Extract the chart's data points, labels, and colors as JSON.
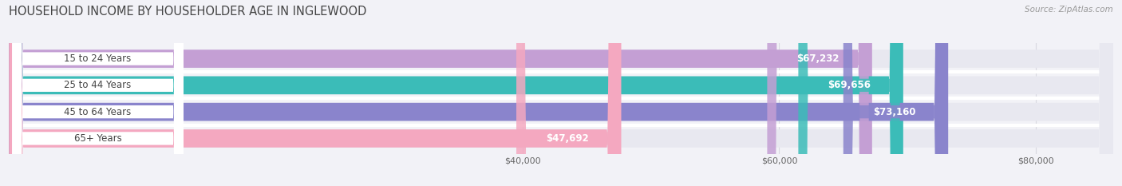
{
  "title": "HOUSEHOLD INCOME BY HOUSEHOLDER AGE IN INGLEWOOD",
  "source": "Source: ZipAtlas.com",
  "categories": [
    "15 to 24 Years",
    "25 to 44 Years",
    "45 to 64 Years",
    "65+ Years"
  ],
  "values": [
    67232,
    69656,
    73160,
    47692
  ],
  "bar_colors": [
    "#c49fd4",
    "#3bbcb8",
    "#8a84cc",
    "#f4a8c0"
  ],
  "bar_label_colors": [
    "#b87fc0",
    "#1fa8a4",
    "#7070b8",
    "#e888a8"
  ],
  "bar_labels": [
    "$67,232",
    "$69,656",
    "$73,160",
    "$47,692"
  ],
  "value_label_inside": [
    true,
    true,
    true,
    false
  ],
  "xlim_min": 0,
  "xlim_max": 86000,
  "xticks": [
    40000,
    60000,
    80000
  ],
  "xtick_labels": [
    "$40,000",
    "$60,000",
    "$80,000"
  ],
  "background_color": "#f2f2f7",
  "bar_bg_color": "#e8e8f0",
  "title_fontsize": 10.5,
  "source_fontsize": 7.5,
  "label_fontsize": 8.5,
  "value_fontsize": 8.5,
  "tick_fontsize": 8,
  "bar_height": 0.68,
  "row_sep_color": "#ffffff"
}
